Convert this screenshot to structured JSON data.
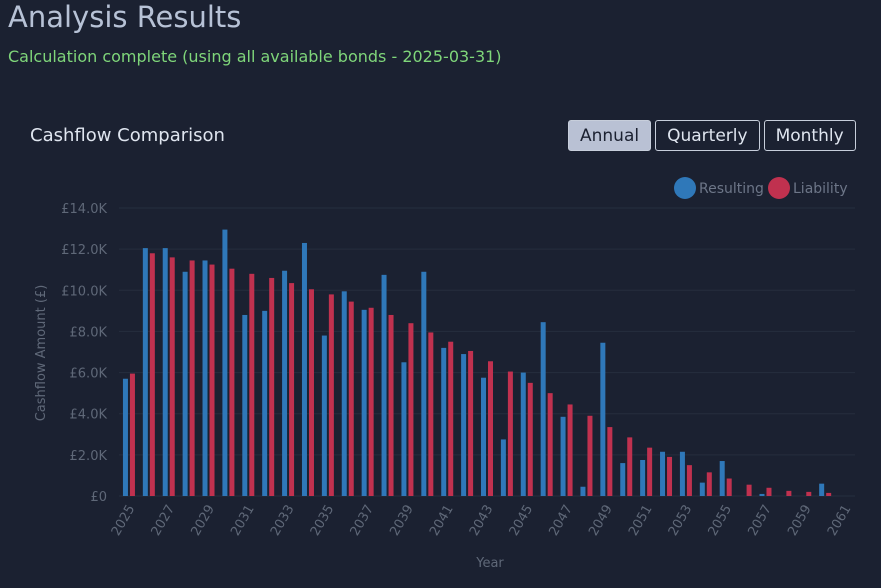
{
  "page": {
    "title": "Analysis Results",
    "status": "Calculation complete (using all available bonds - 2025-03-31)"
  },
  "card": {
    "title": "Cashflow Comparison",
    "toggles": [
      {
        "label": "Annual",
        "active": true
      },
      {
        "label": "Quarterly",
        "active": false
      },
      {
        "label": "Monthly",
        "active": false
      }
    ]
  },
  "chart_data": {
    "type": "bar",
    "title": "Cashflow Comparison",
    "xlabel": "Year",
    "ylabel": "Cashflow Amount (£)",
    "ylim": [
      0,
      14000
    ],
    "yticks": [
      {
        "value": 0,
        "label": "£0"
      },
      {
        "value": 2000,
        "label": "£2.0K"
      },
      {
        "value": 4000,
        "label": "£4.0K"
      },
      {
        "value": 6000,
        "label": "£6.0K"
      },
      {
        "value": 8000,
        "label": "£8.0K"
      },
      {
        "value": 10000,
        "label": "£10.0K"
      },
      {
        "value": 12000,
        "label": "£12.0K"
      },
      {
        "value": 14000,
        "label": "£14.0K"
      }
    ],
    "grid": true,
    "legend_position": "top-right",
    "categories": [
      "2025",
      "2026",
      "2027",
      "2028",
      "2029",
      "2030",
      "2031",
      "2032",
      "2033",
      "2034",
      "2035",
      "2036",
      "2037",
      "2038",
      "2039",
      "2040",
      "2041",
      "2042",
      "2043",
      "2044",
      "2045",
      "2046",
      "2047",
      "2048",
      "2049",
      "2050",
      "2051",
      "2052",
      "2053",
      "2054",
      "2055",
      "2056",
      "2057",
      "2058",
      "2059",
      "2060",
      "2061"
    ],
    "xtick_labels": [
      "2025",
      "2027",
      "2029",
      "2031",
      "2033",
      "2035",
      "2037",
      "2039",
      "2041",
      "2043",
      "2045",
      "2047",
      "2049",
      "2051",
      "2053",
      "2055",
      "2057",
      "2059",
      "2061"
    ],
    "series": [
      {
        "name": "Resulting",
        "color": "#2f78b9",
        "values": [
          5700,
          12050,
          12050,
          10900,
          11450,
          12950,
          8800,
          9000,
          10950,
          12300,
          7800,
          9950,
          9050,
          10750,
          6500,
          10900,
          7200,
          6900,
          5750,
          2750,
          6000,
          8450,
          3850,
          450,
          7450,
          1600,
          1750,
          2150,
          2150,
          650,
          1700,
          0,
          100,
          0,
          0,
          600,
          0
        ]
      },
      {
        "name": "Liability",
        "color": "#c0314f",
        "values": [
          5950,
          11800,
          11600,
          11450,
          11250,
          11050,
          10800,
          10600,
          10350,
          10050,
          9800,
          9450,
          9150,
          8800,
          8400,
          7950,
          7500,
          7050,
          6550,
          6050,
          5500,
          5000,
          4450,
          3900,
          3350,
          2850,
          2350,
          1900,
          1500,
          1150,
          850,
          550,
          400,
          250,
          200,
          150,
          0
        ]
      }
    ]
  }
}
